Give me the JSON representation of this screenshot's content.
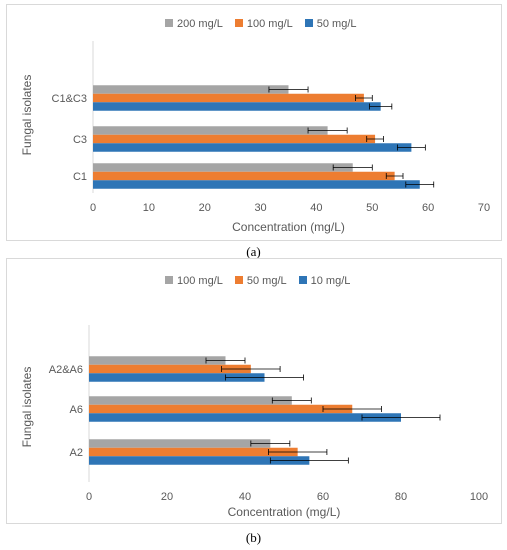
{
  "captions": [
    "(a)",
    "(b)"
  ],
  "chart_data": [
    {
      "type": "bar",
      "orientation": "horizontal",
      "categories": [
        "C1",
        "C3",
        "C1&C3"
      ],
      "series": [
        {
          "name": "200 mg/L",
          "color": "#a5a5a5",
          "values": [
            46.5,
            42,
            35
          ],
          "errors": [
            3.5,
            3.5,
            3.5
          ]
        },
        {
          "name": "100 mg/L",
          "color": "#ed7d31",
          "values": [
            54,
            50.5,
            48.5
          ],
          "errors": [
            1.5,
            1.5,
            1.5
          ]
        },
        {
          "name": "50 mg/L",
          "color": "#2e75b6",
          "values": [
            58.5,
            57,
            51.5
          ],
          "errors": [
            2.5,
            2.5,
            2
          ]
        }
      ],
      "xticks": [
        0,
        10,
        20,
        30,
        40,
        50,
        60,
        70
      ],
      "xlim": [
        0,
        70
      ],
      "xlabel": "Concentration (mg/L)",
      "ylabel": "Fungal isolates",
      "legend": "top",
      "grid": false
    },
    {
      "type": "bar",
      "orientation": "horizontal",
      "categories": [
        "A2",
        "A6",
        "A2&A6"
      ],
      "series": [
        {
          "name": "100 mg/L",
          "color": "#a5a5a5",
          "values": [
            46.5,
            52,
            35
          ],
          "errors": [
            5,
            5,
            5
          ]
        },
        {
          "name": "50 mg/L",
          "color": "#ed7d31",
          "values": [
            53.5,
            67.5,
            41.5
          ],
          "errors": [
            7.5,
            7.5,
            7.5
          ]
        },
        {
          "name": "10 mg/L",
          "color": "#2e75b6",
          "values": [
            56.5,
            80,
            45
          ],
          "errors": [
            10,
            10,
            10
          ]
        }
      ],
      "xticks": [
        0,
        20,
        40,
        60,
        80,
        100
      ],
      "xlim": [
        0,
        100
      ],
      "xlabel": "Concentration (mg/L)",
      "ylabel": "Fungal isolates",
      "legend": "top",
      "grid": false
    }
  ]
}
